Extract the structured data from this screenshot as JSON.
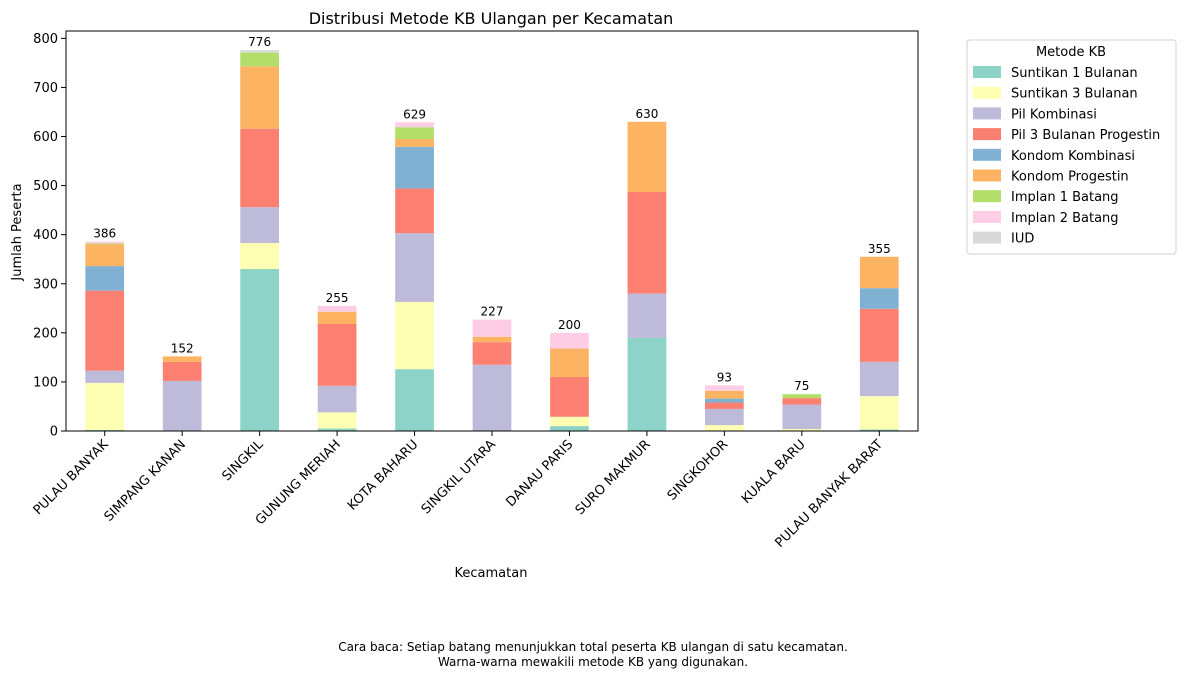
{
  "chart_data": {
    "type": "bar",
    "stacked": true,
    "title": "Distribusi Metode KB Ulangan per Kecamatan",
    "xlabel": "Kecamatan",
    "ylabel": "Jumlah Peserta",
    "ylim": [
      0,
      815
    ],
    "yticks": [
      0,
      100,
      200,
      300,
      400,
      500,
      600,
      700,
      800
    ],
    "legend_title": "Metode KB",
    "legend_position": "outside-top-right",
    "categories": [
      "PULAU BANYAK",
      "SIMPANG KANAN",
      "SINGKIL",
      "GUNUNG MERIAH",
      "KOTA BAHARU",
      "SINGKIL UTARA",
      "DANAU PARIS",
      "SURO MAKMUR",
      "SINGKOHOR",
      "KUALA BARU",
      "PULAU BANYAK BARAT"
    ],
    "totals": [
      386,
      152,
      776,
      255,
      629,
      227,
      200,
      630,
      93,
      75,
      355
    ],
    "series": [
      {
        "name": "Suntikan 1 Bulanan",
        "color": "#8dd3c7",
        "values": [
          2,
          0,
          330,
          5,
          126,
          0,
          10,
          190,
          0,
          0,
          3
        ]
      },
      {
        "name": "Suntikan 3 Bulanan",
        "color": "#ffffb3",
        "values": [
          96,
          0,
          53,
          33,
          137,
          0,
          19,
          0,
          12,
          4,
          68
        ]
      },
      {
        "name": "Pil Kombinasi",
        "color": "#bebada",
        "values": [
          25,
          102,
          73,
          54,
          140,
          135,
          0,
          90,
          33,
          50,
          70
        ]
      },
      {
        "name": "Pil 3 Bulanan Progestin",
        "color": "#fb8072",
        "values": [
          163,
          39,
          160,
          126,
          91,
          46,
          81,
          207,
          13,
          13,
          108
        ]
      },
      {
        "name": "Kondom Kombinasi",
        "color": "#80b1d3",
        "values": [
          50,
          0,
          0,
          0,
          85,
          0,
          0,
          0,
          8,
          0,
          42
        ]
      },
      {
        "name": "Kondom Progestin",
        "color": "#fdb462",
        "values": [
          44,
          11,
          127,
          25,
          16,
          11,
          58,
          143,
          16,
          0,
          64
        ]
      },
      {
        "name": "Implan 1 Batang",
        "color": "#b3de69",
        "values": [
          2,
          0,
          28,
          0,
          24,
          0,
          0,
          0,
          0,
          8,
          0
        ]
      },
      {
        "name": "Implan 2 Batang",
        "color": "#fccde5",
        "values": [
          4,
          0,
          0,
          12,
          10,
          35,
          32,
          0,
          11,
          0,
          0
        ]
      },
      {
        "name": "IUD",
        "color": "#d9d9d9",
        "values": [
          0,
          0,
          5,
          0,
          0,
          0,
          0,
          0,
          0,
          0,
          0
        ]
      }
    ]
  },
  "footnote": {
    "line1": "Cara baca: Setiap batang menunjukkan total peserta KB ulangan di satu kecamatan.",
    "line2": "Warna-warna mewakili metode KB yang digunakan."
  }
}
